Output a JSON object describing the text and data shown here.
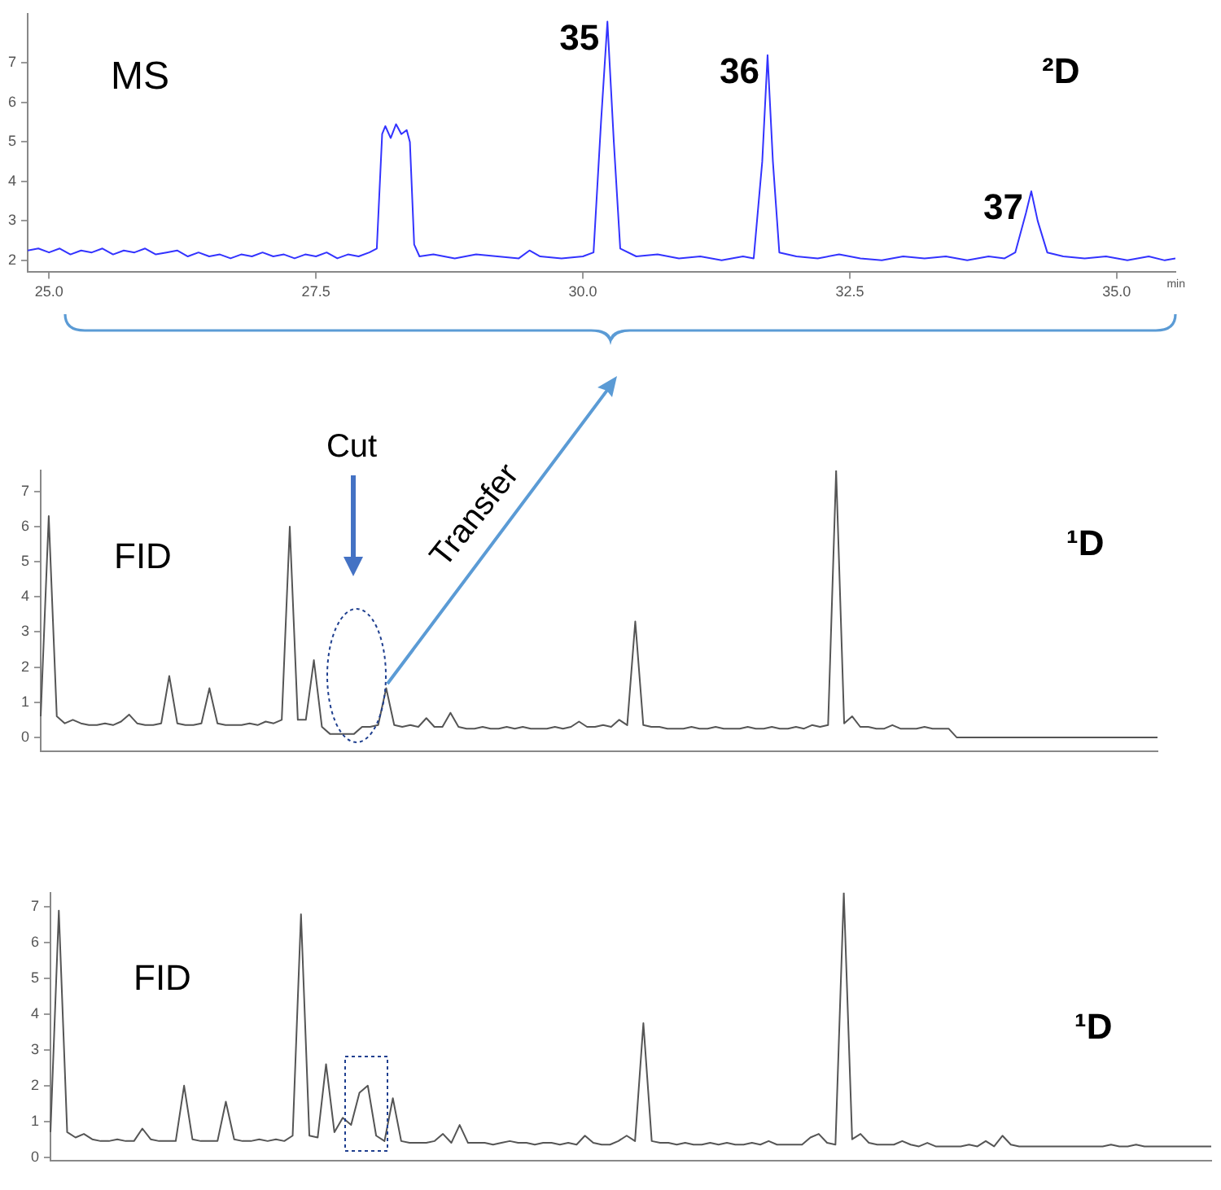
{
  "chart_data": [
    {
      "type": "line",
      "xlabel": "min",
      "xlim": [
        24.8,
        35.55
      ],
      "ylim": [
        1.7,
        8.25
      ],
      "xticks": [
        {
          "value": 25,
          "label": "25.0"
        },
        {
          "value": 27.5,
          "label": "27.5"
        },
        {
          "value": 30,
          "label": "30.0"
        },
        {
          "value": 32.5,
          "label": "32.5"
        },
        {
          "value": 35,
          "label": "35.0"
        }
      ],
      "yticks": [
        2,
        3,
        4,
        5,
        6,
        7
      ],
      "grid": false,
      "legend": false,
      "marker": "none",
      "annotations": [
        "MS",
        "²D",
        {
          "text": "35",
          "x": 30.23,
          "y": 8.05
        },
        {
          "text": "36",
          "x": 31.73,
          "y": 7.2
        },
        {
          "text": "37",
          "x": 34.2,
          "y": 3.75
        }
      ],
      "series": [
        {
          "color": "#3333ff",
          "x": [
            24.8,
            24.9,
            25.0,
            25.1,
            25.2,
            25.3,
            25.4,
            25.5,
            25.6,
            25.7,
            25.8,
            25.9,
            26.0,
            26.1,
            26.2,
            26.3,
            26.4,
            26.5,
            26.6,
            26.7,
            26.8,
            26.9,
            27.0,
            27.1,
            27.2,
            27.3,
            27.4,
            27.5,
            27.6,
            27.7,
            27.8,
            27.9,
            28.0,
            28.07,
            28.12,
            28.15,
            28.2,
            28.25,
            28.3,
            28.35,
            28.38,
            28.42,
            28.47,
            28.6,
            28.8,
            29.0,
            29.2,
            29.4,
            29.5,
            29.6,
            29.8,
            30.0,
            30.1,
            30.17,
            30.23,
            30.29,
            30.35,
            30.5,
            30.7,
            30.9,
            31.1,
            31.3,
            31.5,
            31.6,
            31.68,
            31.73,
            31.78,
            31.84,
            32.0,
            32.2,
            32.4,
            32.6,
            32.8,
            33.0,
            33.2,
            33.4,
            33.6,
            33.8,
            33.95,
            34.05,
            34.15,
            34.2,
            34.26,
            34.35,
            34.5,
            34.7,
            34.9,
            35.1,
            35.3,
            35.45,
            35.55
          ],
          "values": [
            2.25,
            2.3,
            2.2,
            2.3,
            2.15,
            2.25,
            2.2,
            2.3,
            2.15,
            2.25,
            2.2,
            2.3,
            2.15,
            2.2,
            2.25,
            2.1,
            2.2,
            2.1,
            2.15,
            2.05,
            2.15,
            2.1,
            2.2,
            2.1,
            2.15,
            2.05,
            2.15,
            2.1,
            2.2,
            2.05,
            2.15,
            2.1,
            2.2,
            2.3,
            5.2,
            5.4,
            5.1,
            5.45,
            5.2,
            5.3,
            5.0,
            2.4,
            2.1,
            2.15,
            2.05,
            2.15,
            2.1,
            2.05,
            2.25,
            2.1,
            2.05,
            2.1,
            2.2,
            5.5,
            8.05,
            5.0,
            2.3,
            2.1,
            2.15,
            2.05,
            2.1,
            2.0,
            2.1,
            2.05,
            4.5,
            7.2,
            4.5,
            2.2,
            2.1,
            2.05,
            2.15,
            2.05,
            2.0,
            2.1,
            2.05,
            2.1,
            2.0,
            2.1,
            2.05,
            2.2,
            3.2,
            3.75,
            3.0,
            2.2,
            2.1,
            2.05,
            2.1,
            2.0,
            2.1,
            2.0,
            2.05
          ]
        }
      ]
    },
    {
      "type": "line",
      "ylim": [
        -0.4,
        7.6
      ],
      "yticks": [
        0,
        1,
        2,
        3,
        4,
        5,
        6,
        7
      ],
      "tick_labels": "y",
      "grid": false,
      "legend": false,
      "marker": "none",
      "annotations": [
        "FID",
        "¹D",
        "Cut",
        "Transfer"
      ],
      "categories": [
        null,
        null,
        null,
        null,
        null,
        null,
        null,
        null,
        null,
        null,
        null,
        null,
        null,
        null,
        null,
        null,
        null,
        null,
        null,
        null,
        null,
        null,
        null,
        null,
        null,
        null,
        null,
        null,
        null,
        null,
        null,
        null,
        null,
        null,
        null,
        null,
        null,
        null,
        null,
        null,
        null,
        null,
        null,
        null,
        null,
        null,
        null,
        null,
        null,
        null,
        null,
        null,
        null,
        null,
        null,
        null,
        null,
        null,
        null,
        null,
        null,
        null,
        null,
        null,
        null,
        null,
        null,
        null,
        null,
        null,
        null,
        null,
        null,
        null,
        null,
        null,
        null,
        null,
        null,
        null,
        null,
        null,
        null,
        null,
        null,
        null,
        null,
        null,
        null,
        null,
        null,
        null,
        null,
        null,
        null,
        null,
        null,
        null,
        null,
        null,
        null,
        null,
        null,
        null,
        null,
        null,
        null,
        null,
        null,
        null,
        null,
        null,
        null,
        null,
        null,
        null,
        null,
        null,
        null,
        null,
        null,
        null,
        null,
        null,
        null,
        null,
        null,
        null,
        null,
        null,
        null,
        null,
        null,
        null,
        null,
        null,
        null,
        null,
        null,
        null
      ],
      "series": [
        {
          "color": "#555555",
          "values": [
            0.6,
            6.3,
            0.6,
            0.4,
            0.5,
            0.4,
            0.35,
            0.35,
            0.4,
            0.35,
            0.45,
            0.65,
            0.4,
            0.35,
            0.35,
            0.4,
            1.75,
            0.4,
            0.35,
            0.35,
            0.4,
            1.4,
            0.4,
            0.35,
            0.35,
            0.35,
            0.4,
            0.35,
            0.45,
            0.4,
            0.5,
            6.0,
            0.5,
            0.5,
            2.2,
            0.3,
            0.1,
            0.1,
            0.1,
            0.1,
            0.3,
            0.3,
            0.35,
            1.4,
            0.35,
            0.3,
            0.35,
            0.3,
            0.55,
            0.3,
            0.3,
            0.7,
            0.3,
            0.25,
            0.25,
            0.3,
            0.25,
            0.25,
            0.3,
            0.25,
            0.3,
            0.25,
            0.25,
            0.25,
            0.3,
            0.25,
            0.3,
            0.45,
            0.3,
            0.3,
            0.35,
            0.3,
            0.5,
            0.35,
            3.3,
            0.35,
            0.3,
            0.3,
            0.25,
            0.25,
            0.25,
            0.3,
            0.25,
            0.25,
            0.3,
            0.25,
            0.25,
            0.25,
            0.3,
            0.25,
            0.25,
            0.3,
            0.25,
            0.25,
            0.3,
            0.25,
            0.35,
            0.3,
            0.35,
            7.6,
            0.4,
            0.6,
            0.3,
            0.3,
            0.25,
            0.25,
            0.35,
            0.25,
            0.25,
            0.25,
            0.3,
            0.25,
            0.25,
            0.25,
            0,
            0,
            0,
            0,
            0,
            0,
            0,
            0,
            0,
            0,
            0,
            0,
            0,
            0,
            0,
            0,
            0,
            0,
            0,
            0,
            0,
            0,
            0,
            0,
            0,
            0
          ]
        }
      ]
    },
    {
      "type": "line",
      "ylim": [
        -0.1,
        7.4
      ],
      "yticks": [
        0,
        1,
        2,
        3,
        4,
        5,
        6,
        7
      ],
      "tick_labels": "y",
      "grid": false,
      "legend": false,
      "marker": "none",
      "annotations": [
        "FID",
        "¹D"
      ],
      "categories": [
        null,
        null,
        null,
        null,
        null,
        null,
        null,
        null,
        null,
        null,
        null,
        null,
        null,
        null,
        null,
        null,
        null,
        null,
        null,
        null,
        null,
        null,
        null,
        null,
        null,
        null,
        null,
        null,
        null,
        null,
        null,
        null,
        null,
        null,
        null,
        null,
        null,
        null,
        null,
        null,
        null,
        null,
        null,
        null,
        null,
        null,
        null,
        null,
        null,
        null,
        null,
        null,
        null,
        null,
        null,
        null,
        null,
        null,
        null,
        null,
        null,
        null,
        null,
        null,
        null,
        null,
        null,
        null,
        null,
        null,
        null,
        null,
        null,
        null,
        null,
        null,
        null,
        null,
        null,
        null,
        null,
        null,
        null,
        null,
        null,
        null,
        null,
        null,
        null,
        null,
        null,
        null,
        null,
        null,
        null,
        null,
        null,
        null,
        null,
        null,
        null,
        null,
        null,
        null,
        null,
        null,
        null,
        null,
        null,
        null,
        null,
        null,
        null,
        null,
        null,
        null,
        null,
        null,
        null,
        null,
        null,
        null,
        null,
        null,
        null,
        null,
        null,
        null,
        null,
        null,
        null,
        null,
        null,
        null,
        null,
        null,
        null,
        null,
        null,
        null
      ],
      "series": [
        {
          "color": "#555555",
          "values": [
            0.7,
            6.9,
            0.7,
            0.55,
            0.65,
            0.5,
            0.45,
            0.45,
            0.5,
            0.45,
            0.45,
            0.8,
            0.5,
            0.45,
            0.45,
            0.45,
            2.0,
            0.5,
            0.45,
            0.45,
            0.45,
            1.55,
            0.5,
            0.45,
            0.45,
            0.5,
            0.45,
            0.5,
            0.45,
            0.6,
            6.8,
            0.6,
            0.55,
            2.6,
            0.7,
            1.1,
            0.9,
            1.8,
            2.0,
            0.6,
            0.45,
            1.65,
            0.45,
            0.4,
            0.4,
            0.4,
            0.45,
            0.65,
            0.4,
            0.9,
            0.4,
            0.4,
            0.4,
            0.35,
            0.4,
            0.45,
            0.4,
            0.4,
            0.35,
            0.4,
            0.4,
            0.35,
            0.4,
            0.35,
            0.6,
            0.4,
            0.35,
            0.35,
            0.45,
            0.6,
            0.45,
            3.75,
            0.45,
            0.4,
            0.4,
            0.35,
            0.4,
            0.35,
            0.35,
            0.4,
            0.35,
            0.4,
            0.35,
            0.35,
            0.4,
            0.35,
            0.45,
            0.35,
            0.35,
            0.35,
            0.35,
            0.55,
            0.65,
            0.4,
            0.35,
            7.4,
            0.5,
            0.65,
            0.4,
            0.35,
            0.35,
            0.35,
            0.45,
            0.35,
            0.3,
            0.4,
            0.3,
            0.3,
            0.3,
            0.3,
            0.35,
            0.3,
            0.45,
            0.3,
            0.6,
            0.35,
            0.3,
            0.3,
            0.3,
            0.3,
            0.3,
            0.3,
            0.3,
            0.3,
            0.3,
            0.3,
            0.3,
            0.35,
            0.3,
            0.3,
            0.35,
            0.3,
            0.3,
            0.3,
            0.3,
            0.3,
            0.3,
            0.3,
            0.3,
            0.3
          ]
        }
      ]
    }
  ]
}
